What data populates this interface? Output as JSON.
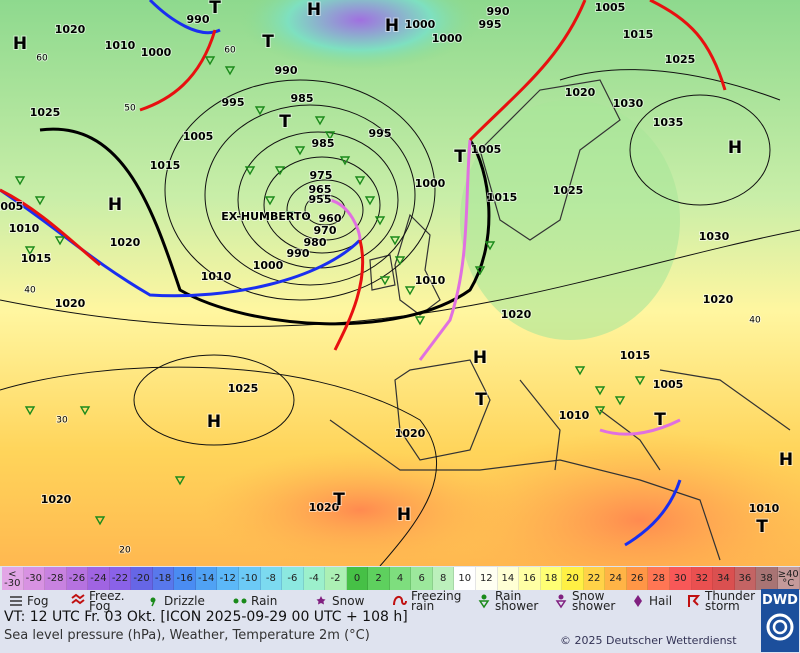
{
  "map": {
    "storm_label": "EX-HUMBERTO",
    "pressure_labels": [
      990,
      1020,
      1010,
      1000,
      990,
      985,
      995,
      1005,
      1015,
      1025,
      985,
      975,
      965,
      955,
      960,
      970,
      980,
      990,
      1000,
      1010,
      1020,
      1020,
      1010,
      1015,
      1025,
      1020,
      1020,
      1020,
      1000,
      990,
      995,
      1000,
      1005,
      1015,
      1025,
      1020,
      1030,
      1035,
      1005,
      1000,
      1015,
      1025,
      1030,
      1020,
      1010,
      1020,
      1015,
      1005,
      1010,
      1010,
      995,
      1005
    ],
    "centers": [
      "H",
      "H",
      "H",
      "T",
      "T",
      "T",
      "H",
      "T",
      "H",
      "H",
      "T",
      "H",
      "T",
      "H",
      "T",
      "H",
      "T"
    ],
    "grid_labels": [
      60,
      50,
      40,
      30,
      20,
      60,
      40
    ]
  },
  "scale": {
    "cells": [
      {
        "label": "< -30",
        "color": "#e2a6e6"
      },
      {
        "label": -30,
        "color": "#d892e2"
      },
      {
        "label": -28,
        "color": "#c882e0"
      },
      {
        "label": -26,
        "color": "#b672e0"
      },
      {
        "label": -24,
        "color": "#a064e2"
      },
      {
        "label": -22,
        "color": "#8a62e8"
      },
      {
        "label": -20,
        "color": "#6666e6"
      },
      {
        "label": -18,
        "color": "#5878ec"
      },
      {
        "label": -16,
        "color": "#4a8cf2"
      },
      {
        "label": -14,
        "color": "#50a2f4"
      },
      {
        "label": -12,
        "color": "#5cb8f8"
      },
      {
        "label": -10,
        "color": "#6ccaf6"
      },
      {
        "label": -8,
        "color": "#7cdaf0"
      },
      {
        "label": -6,
        "color": "#8ce8e0"
      },
      {
        "label": -4,
        "color": "#9cf0cc"
      },
      {
        "label": -2,
        "color": "#acf0b4"
      },
      {
        "label": 0,
        "color": "#46c046"
      },
      {
        "label": 2,
        "color": "#5ed05e"
      },
      {
        "label": 4,
        "color": "#7ede7e"
      },
      {
        "label": 6,
        "color": "#9ce89c"
      },
      {
        "label": 8,
        "color": "#bcf0bc"
      },
      {
        "label": 10,
        "color": "#ffffff"
      },
      {
        "label": 12,
        "color": "#fffff2"
      },
      {
        "label": 14,
        "color": "#ffffd4"
      },
      {
        "label": 16,
        "color": "#ffffa4"
      },
      {
        "label": 18,
        "color": "#ffff74"
      },
      {
        "label": 20,
        "color": "#fff044"
      },
      {
        "label": 22,
        "color": "#ffd248"
      },
      {
        "label": 24,
        "color": "#ffb446"
      },
      {
        "label": 26,
        "color": "#ff9646"
      },
      {
        "label": 28,
        "color": "#ff7654"
      },
      {
        "label": 30,
        "color": "#f85858"
      },
      {
        "label": 32,
        "color": "#ea5050"
      },
      {
        "label": 34,
        "color": "#da5050"
      },
      {
        "label": 36,
        "color": "#c46464"
      },
      {
        "label": 38,
        "color": "#a87474"
      },
      {
        "label": "≥40 °C",
        "color": "#c49a9a"
      }
    ]
  },
  "legend": [
    "Fog",
    "Freez. Fog",
    "Drizzle",
    "Rain",
    "Snow",
    "Freezing rain",
    "Rain shower",
    "Snow shower",
    "Hail",
    "Thunder storm"
  ],
  "footer": {
    "valid_time": "VT: 12 UTC Fr.  03 Okt. [ICON 2025-09-29  00 UTC + 108 h]",
    "description": "Sea level pressure (hPa), Weather, Temperature 2m (°C)",
    "copyright": "© 2025 Deutscher Wetterdienst",
    "logo": "DWD"
  }
}
